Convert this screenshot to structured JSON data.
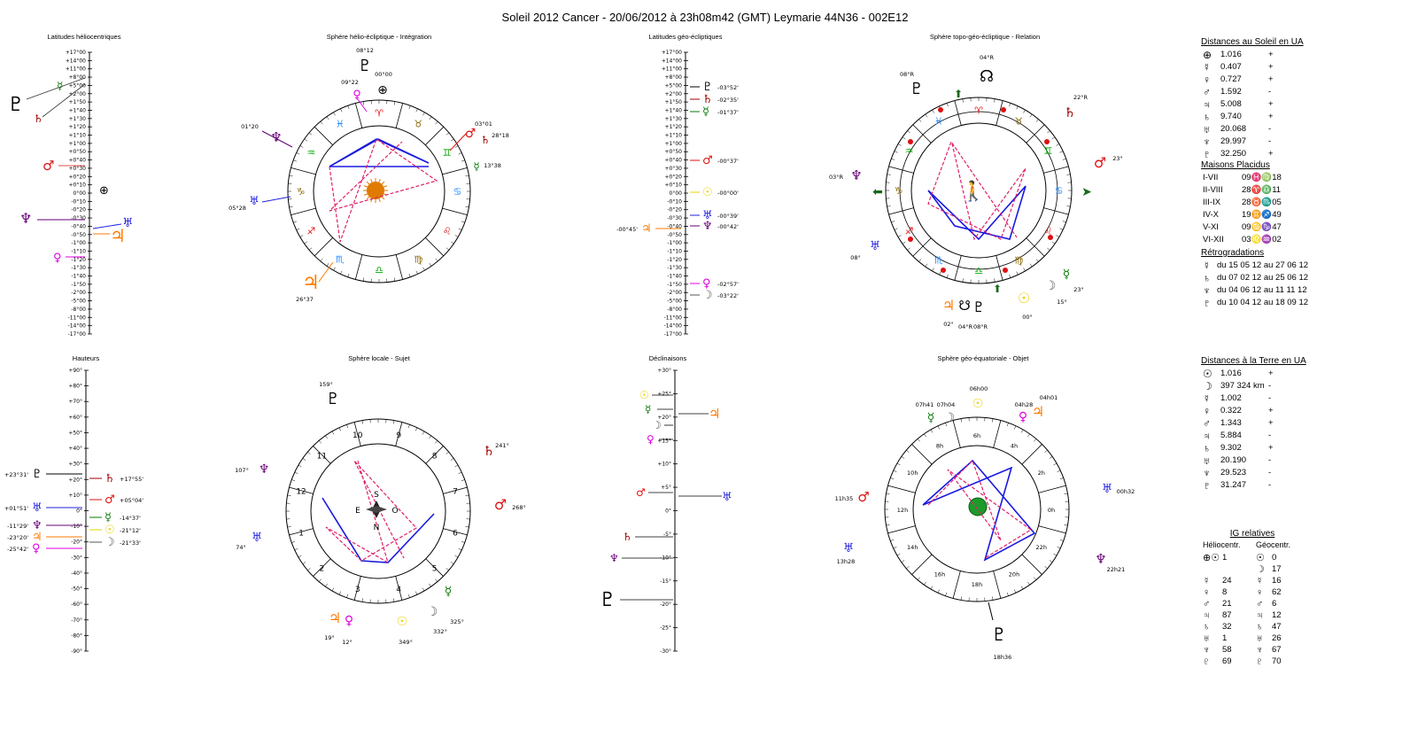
{
  "title": "Soleil 2012 Cancer   -  20/06/2012 à 23h08m42 (GMT)  Leymarie  44N36 - 002E12",
  "panels": {
    "helio_lat": "Latitudes héliocentriques",
    "helio_ecl": "Sphère hélio-écliptique - Intégration",
    "geo_lat": "Latitudes géo-écliptiques",
    "topo": "Sphère topo-géo-écliptique - Relation",
    "hauteurs": "Hauteurs",
    "locale": "Sphère locale - Sujet",
    "declin": "Déclinaisons",
    "geo_eq": "Sphère géo-équatoriale - Objet"
  },
  "lat_ticks": [
    "+17°00",
    "+14°00",
    "+11°00",
    "+8°00",
    "+5°00",
    "+2°00",
    "+1°50",
    "+1°40",
    "+1°30",
    "+1°20",
    "+1°10",
    "+1°00",
    "+0°50",
    "+0°40",
    "+0°30",
    "+0°20",
    "+0°10",
    "0°00",
    "-0°10",
    "-0°20",
    "-0°30",
    "-0°40",
    "-0°50",
    "-1°00",
    "-1°10",
    "-1°20",
    "-1°30",
    "-1°40",
    "-1°50",
    "-2°00",
    "-5°00",
    "-8°00",
    "-11°00",
    "-14°00",
    "-17°00"
  ],
  "haut_ticks": [
    "+90°",
    "+80°",
    "+70°",
    "+60°",
    "+50°",
    "+40°",
    "+30°",
    "+20°",
    "+10°",
    "0°",
    "-10°",
    "-20°",
    "-30°",
    "-40°",
    "-50°",
    "-60°",
    "-70°",
    "-80°",
    "-90°"
  ],
  "decl_ticks": [
    "+30°",
    "+25°",
    "+20°",
    "+15°",
    "+10°",
    "+5°",
    "0°",
    "-5°",
    "-10°",
    "-15°",
    "-20°",
    "-25°",
    "-30°"
  ],
  "geo_lat_labels": {
    "pluto": "-03°52'",
    "saturn": "-02°35'",
    "mercury": "-01°37'",
    "mars": "-00°37'",
    "sun": "-00°00'",
    "uranus": "-00°39'",
    "neptune": "-00°42'",
    "jupiter": "-00°45'",
    "venus": "-02°57'",
    "moon": "-03°22'"
  },
  "hauteurs_labels": {
    "pluto": "+23°31'",
    "saturn": "+17°55'",
    "uranus": "+01°51'",
    "mars": "+05°04'",
    "neptune": "-11°29'",
    "mercury": "-14°37'",
    "jupiter": "-23°20'",
    "sun": "-21°12'",
    "venus": "-25°42'",
    "moon": "-21°33'"
  },
  "helio_ecl_labels": {
    "pluto": "08°12",
    "earth": "00°00",
    "venus": "09°22",
    "uranus": "01°20",
    "mars": "03°01",
    "saturn": "28°18",
    "mercury": "13°38",
    "neptune": "05°28",
    "jupiter": "26°37"
  },
  "topo_labels": {
    "node_n": "04°R",
    "pluto": "08°R",
    "saturn": "22°R",
    "mars": "23°",
    "uranus": "03°R",
    "neptune": "08°",
    "mercury": "23°",
    "moon": "15°",
    "sun": "00°",
    "jupiter": "02°",
    "node_s": "04°R",
    "pluto2": "08°R"
  },
  "locale_labels": {
    "pluto": "159°",
    "saturn": "241°",
    "uranus": "107°",
    "mars": "268°",
    "neptune": "74°",
    "mercury": "325°",
    "moon": "332°",
    "sun": "349°",
    "venus": "12°",
    "jupiter": "19°",
    "houses": [
      "1",
      "2",
      "3",
      "4",
      "5",
      "6",
      "7",
      "8",
      "9",
      "10",
      "11",
      "12"
    ],
    "compass": [
      "S",
      "N",
      "E",
      "O"
    ]
  },
  "geo_eq_labels": {
    "sun": "06h00",
    "mercury": "07h41",
    "moon": "07h04",
    "venus": "04h28",
    "jupiter": "04h01",
    "uranus": "11h35",
    "mars": "13h28",
    "neptune": "00h32",
    "saturn": "22h21",
    "pluto": "18h36",
    "hours": [
      "6h",
      "4h",
      "2h",
      "0h",
      "22h",
      "20h",
      "18h",
      "16h",
      "14h",
      "12h",
      "10h",
      "8h"
    ]
  },
  "distances_soleil": {
    "title": "Distances au Soleil en UA",
    "rows": [
      {
        "glyph": "⊕",
        "value": "1.016",
        "sign": "+"
      },
      {
        "glyph": "☿",
        "value": "0.407",
        "sign": "+"
      },
      {
        "glyph": "♀",
        "value": "0.727",
        "sign": "+"
      },
      {
        "glyph": "♂",
        "value": "1.592",
        "sign": "-"
      },
      {
        "glyph": "♃",
        "value": "5.008",
        "sign": "+"
      },
      {
        "glyph": "♄",
        "value": "9.740",
        "sign": "+"
      },
      {
        "glyph": "♅",
        "value": "20.068",
        "sign": "-"
      },
      {
        "glyph": "♆",
        "value": "29.997",
        "sign": "-"
      },
      {
        "glyph": "♇",
        "value": "32.250",
        "sign": "+"
      }
    ]
  },
  "maisons": {
    "title": "Maisons Placidus",
    "rows": [
      {
        "label": "I-VII",
        "value": "09♓♍18"
      },
      {
        "label": "II-VIII",
        "value": "28♈♎11"
      },
      {
        "label": "III-IX",
        "value": "28♉♏05"
      },
      {
        "label": "IV-X",
        "value": "19♊♐49"
      },
      {
        "label": "V-XI",
        "value": "09♋♑47"
      },
      {
        "label": "VI-XII",
        "value": "03♌♒02"
      }
    ]
  },
  "retro": {
    "title": "Rétrogradations",
    "rows": [
      {
        "glyph": "☿",
        "value": "du 15 05 12 au 27 06 12"
      },
      {
        "glyph": "♄",
        "value": "du 07 02 12 au 25 06 12"
      },
      {
        "glyph": "♆",
        "value": "du 04 06 12 au 11 11 12"
      },
      {
        "glyph": "♇",
        "value": "du 10 04 12 au 18 09 12"
      }
    ]
  },
  "distances_terre": {
    "title": "Distances à la Terre en UA",
    "rows": [
      {
        "glyph": "☉",
        "value": "1.016",
        "sign": "+"
      },
      {
        "glyph": "☽",
        "value": "397 324 km",
        "sign": "-"
      },
      {
        "glyph": "☿",
        "value": "1.002",
        "sign": "-"
      },
      {
        "glyph": "♀",
        "value": "0.322",
        "sign": "+"
      },
      {
        "glyph": "♂",
        "value": "1.343",
        "sign": "+"
      },
      {
        "glyph": "♃",
        "value": "5.884",
        "sign": "-"
      },
      {
        "glyph": "♄",
        "value": "9.302",
        "sign": "+"
      },
      {
        "glyph": "♅",
        "value": "20.190",
        "sign": "-"
      },
      {
        "glyph": "♆",
        "value": "29.523",
        "sign": "-"
      },
      {
        "glyph": "♇",
        "value": "31.247",
        "sign": "-"
      }
    ]
  },
  "ig": {
    "title": "IG relatives",
    "col1": "Héliocentr.",
    "col2": "Géocentr.",
    "rows": [
      {
        "g1": "⊕☉",
        "v1": "1",
        "g2": "☉",
        "v2": "0"
      },
      {
        "g1": "",
        "v1": "",
        "g2": "☽",
        "v2": "17"
      },
      {
        "g1": "☿",
        "v1": "24",
        "g2": "☿",
        "v2": "16"
      },
      {
        "g1": "♀",
        "v1": "8",
        "g2": "♀",
        "v2": "62"
      },
      {
        "g1": "♂",
        "v1": "21",
        "g2": "♂",
        "v2": "6"
      },
      {
        "g1": "♃",
        "v1": "87",
        "g2": "♃",
        "v2": "12"
      },
      {
        "g1": "♄",
        "v1": "32",
        "g2": "♄",
        "v2": "47"
      },
      {
        "g1": "♅",
        "v1": "1",
        "g2": "♅",
        "v2": "26"
      },
      {
        "g1": "♆",
        "v1": "58",
        "g2": "♆",
        "v2": "67"
      },
      {
        "g1": "♇",
        "v1": "69",
        "g2": "♇",
        "v2": "70"
      }
    ]
  }
}
